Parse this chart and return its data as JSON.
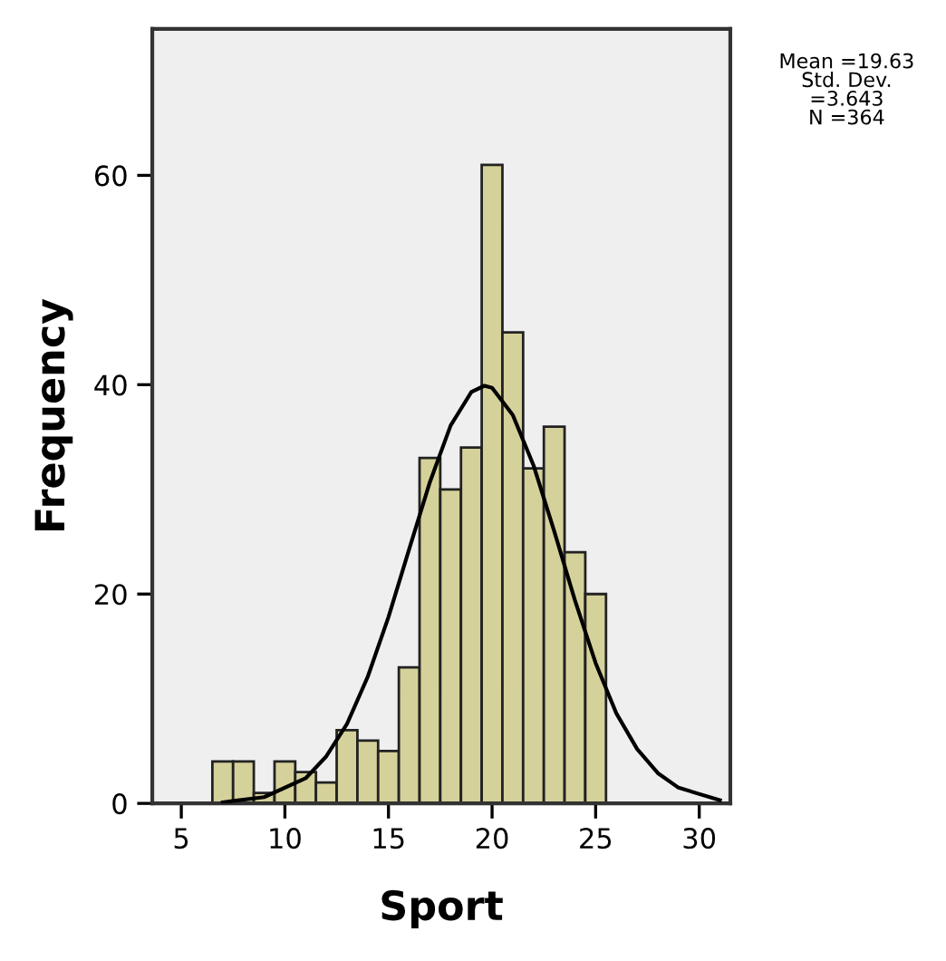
{
  "chart_data": {
    "type": "histogram",
    "xlabel": "Sport",
    "ylabel": "Frequency",
    "series": [
      {
        "color": "#d5d19a",
        "bins": [
          6.5,
          7.5,
          8.5,
          9.5,
          10.5,
          11.5,
          12.5,
          13.5,
          14.5,
          15.5,
          16.5,
          17.5,
          18.5,
          19.5,
          20.5,
          21.5,
          22.5,
          23.5,
          24.5,
          25.5
        ],
        "values": [
          4,
          4,
          1,
          4,
          3,
          2,
          7,
          6,
          5,
          13,
          33,
          30,
          34,
          61,
          45,
          32,
          36,
          24,
          20
        ]
      },
      {
        "type": "line",
        "color": "#000000",
        "x": [
          7,
          9,
          11,
          12,
          13,
          14,
          15,
          16,
          17,
          18,
          19,
          19.63,
          20,
          21,
          22,
          23,
          24,
          25,
          26,
          27,
          28,
          29,
          31
        ],
        "values": [
          0.1,
          0.6,
          2.4,
          4.5,
          7.6,
          12.1,
          17.8,
          24.3,
          30.7,
          36.1,
          39.3,
          39.9,
          39.7,
          37.1,
          32.3,
          26.0,
          19.4,
          13.4,
          8.6,
          5.2,
          2.9,
          1.5,
          0.3
        ]
      }
    ],
    "xlim": [
      3.6,
      31.5
    ],
    "ylim": [
      0,
      74
    ],
    "xticks": [
      5,
      10,
      15,
      20,
      25,
      30
    ],
    "yticks": [
      0,
      20,
      40,
      60
    ],
    "grid": false,
    "legend": false,
    "annotations": [
      "Mean =19.63\nStd. Dev.\n=3.643\nN =364"
    ]
  }
}
